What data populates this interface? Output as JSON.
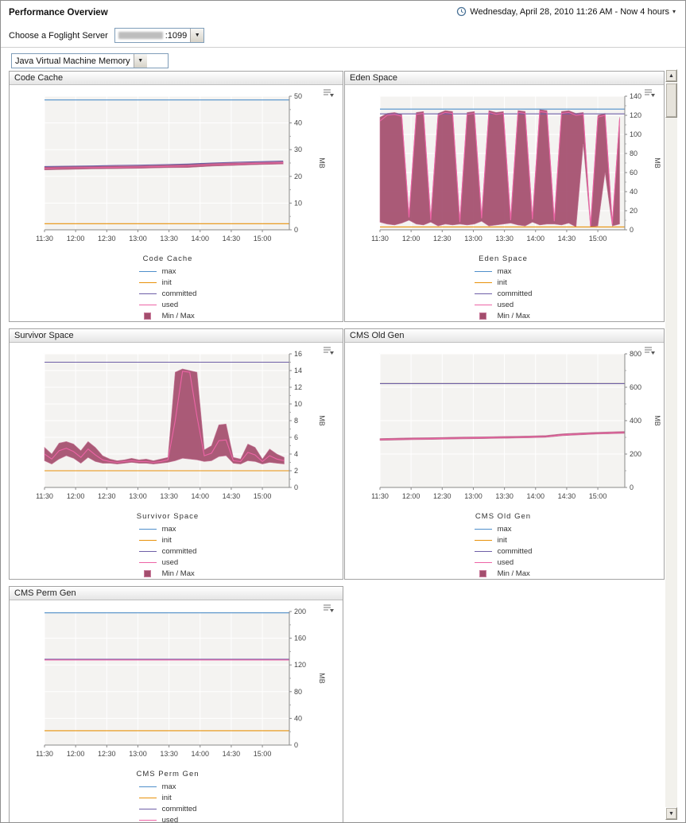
{
  "header": {
    "title": "Performance Overview",
    "time_range": "Wednesday, April 28, 2010 11:26 AM - Now 4 hours"
  },
  "server": {
    "label": "Choose a Foglight Server",
    "port": ":1099"
  },
  "view_selector": {
    "value": "Java Virtual Machine Memory"
  },
  "colors": {
    "max": "#4f8fca",
    "init": "#e8920a",
    "committed": "#6f5fa7",
    "used": "#ed64a6",
    "minmax": "#a34d6d",
    "minmax_edge": "#c97a9b",
    "plot_bg": "#f4f3f1",
    "grid": "#ffffff",
    "axis": "#888888"
  },
  "legend_items": [
    {
      "key": "max",
      "label": "max",
      "type": "line",
      "color": "max"
    },
    {
      "key": "init",
      "label": "init",
      "type": "line",
      "color": "init"
    },
    {
      "key": "committed",
      "label": "committed",
      "type": "line",
      "color": "committed"
    },
    {
      "key": "used",
      "label": "used",
      "type": "line",
      "color": "used"
    },
    {
      "key": "minmax",
      "label": "Min / Max",
      "type": "box",
      "color": "minmax"
    }
  ],
  "charts": [
    {
      "title": "Code Cache",
      "type": "line",
      "ylabel": "MB",
      "ylim": [
        0,
        50
      ],
      "ystep": 10,
      "xmax": 236,
      "x_tick_minutes": [
        0,
        30,
        60,
        90,
        120,
        150,
        180,
        210
      ],
      "x_ticks": [
        "11:30",
        "12:00",
        "12:30",
        "13:00",
        "13:30",
        "14:00",
        "14:30",
        "15:00"
      ],
      "band": {
        "x": [
          0,
          23,
          46,
          69,
          92,
          115,
          138,
          161,
          184,
          207,
          230
        ],
        "max": [
          23.6,
          23.8,
          23.8,
          23.9,
          24.0,
          24.2,
          24.5,
          24.9,
          25.1,
          25.3,
          25.5
        ],
        "min": [
          22.4,
          22.6,
          22.8,
          22.9,
          23.0,
          23.2,
          23.3,
          23.8,
          24.1,
          24.4,
          24.6
        ]
      },
      "series": [
        {
          "name": "max",
          "y": 48.6
        },
        {
          "name": "init",
          "y": 2.3
        },
        {
          "name": "committed",
          "x": [
            0,
            23,
            46,
            69,
            92,
            115,
            138,
            161,
            184,
            207,
            230
          ],
          "y": [
            23.7,
            23.8,
            23.9,
            24.1,
            24.2,
            24.4,
            24.6,
            25.0,
            25.3,
            25.5,
            25.7
          ]
        },
        {
          "name": "used",
          "x": [
            0,
            23,
            46,
            69,
            92,
            115,
            138,
            161,
            184,
            207,
            230
          ],
          "y": [
            23.0,
            23.2,
            23.3,
            23.4,
            23.5,
            23.7,
            23.9,
            24.4,
            24.6,
            24.9,
            25.1
          ]
        }
      ]
    },
    {
      "title": "Eden Space",
      "type": "line",
      "ylabel": "MB",
      "ylim": [
        0,
        140
      ],
      "ystep": 20,
      "xmax": 236,
      "x_tick_minutes": [
        0,
        30,
        60,
        90,
        120,
        150,
        180,
        210
      ],
      "x_ticks": [
        "11:30",
        "12:00",
        "12:30",
        "13:00",
        "13:30",
        "14:00",
        "14:30",
        "15:00"
      ],
      "band": {
        "x": [
          0,
          7,
          14,
          21,
          28,
          35,
          42,
          49,
          56,
          63,
          70,
          77,
          84,
          91,
          98,
          105,
          112,
          119,
          126,
          133,
          140,
          147,
          154,
          161,
          168,
          175,
          182,
          189,
          196,
          203,
          210,
          217,
          224,
          231
        ],
        "max": [
          118,
          122,
          123,
          121,
          15,
          123,
          124,
          12,
          122,
          125,
          124,
          10,
          123,
          124,
          14,
          125,
          123,
          124,
          12,
          125,
          124,
          13,
          126,
          125,
          11,
          124,
          125,
          122,
          123,
          5,
          120,
          122,
          8,
          118
        ],
        "min": [
          8,
          6,
          5,
          7,
          10,
          6,
          5,
          8,
          4,
          6,
          5,
          6,
          5,
          6,
          9,
          4,
          5,
          6,
          7,
          5,
          4,
          8,
          5,
          6,
          6,
          5,
          7,
          3,
          90,
          3,
          4,
          60,
          4,
          6
        ]
      },
      "series": [
        {
          "name": "max",
          "y": 126.5
        },
        {
          "name": "init",
          "y": 3
        },
        {
          "name": "committed",
          "y": 121.5
        },
        {
          "name": "used",
          "x": [
            0,
            7,
            14,
            21,
            28,
            35,
            42,
            49,
            56,
            63,
            70,
            77,
            84,
            91,
            98,
            105,
            112,
            119,
            126,
            133,
            140,
            147,
            154,
            161,
            168,
            175,
            182,
            189,
            196,
            203,
            210,
            217,
            224,
            231
          ],
          "y": [
            114,
            120,
            121,
            119,
            13,
            121,
            122,
            10,
            120,
            123,
            122,
            8,
            121,
            122,
            12,
            123,
            121,
            122,
            10,
            123,
            122,
            11,
            124,
            123,
            9,
            122,
            123,
            120,
            121,
            4,
            118,
            120,
            6,
            116
          ]
        }
      ]
    },
    {
      "title": "Survivor Space",
      "type": "line",
      "ylabel": "MB",
      "ylim": [
        0,
        16
      ],
      "ystep": 2,
      "xmax": 236,
      "x_tick_minutes": [
        0,
        30,
        60,
        90,
        120,
        150,
        180,
        210
      ],
      "x_ticks": [
        "11:30",
        "12:00",
        "12:30",
        "13:00",
        "13:30",
        "14:00",
        "14:30",
        "15:00"
      ],
      "band": {
        "x": [
          0,
          7,
          14,
          21,
          28,
          35,
          42,
          49,
          56,
          63,
          70,
          77,
          84,
          91,
          98,
          105,
          112,
          119,
          126,
          133,
          140,
          147,
          154,
          161,
          168,
          175,
          182,
          189,
          196,
          203,
          210,
          217,
          224,
          231
        ],
        "max": [
          4.8,
          4.0,
          5.3,
          5.5,
          5.2,
          4.4,
          5.5,
          4.8,
          3.8,
          3.4,
          3.2,
          3.3,
          3.5,
          3.3,
          3.4,
          3.2,
          3.4,
          3.6,
          13.8,
          14.2,
          14.0,
          13.8,
          4.5,
          5.0,
          7.5,
          7.6,
          3.6,
          3.4,
          5.2,
          4.8,
          3.4,
          4.6,
          4.0,
          3.6
        ],
        "min": [
          3.2,
          2.8,
          3.4,
          3.8,
          3.5,
          2.9,
          3.6,
          3.1,
          2.9,
          2.9,
          2.8,
          2.9,
          3.0,
          2.9,
          2.9,
          2.8,
          2.9,
          3.0,
          3.2,
          3.5,
          3.4,
          3.3,
          3.1,
          3.2,
          3.7,
          3.8,
          2.9,
          2.8,
          3.2,
          3.1,
          2.8,
          3.0,
          2.9,
          2.8
        ]
      },
      "series": [
        {
          "name": "max",
          "y": 15.0
        },
        {
          "name": "init",
          "y": 2.0
        },
        {
          "name": "committed",
          "y": 15.0
        },
        {
          "name": "used",
          "x": [
            0,
            7,
            14,
            21,
            28,
            35,
            42,
            49,
            56,
            63,
            70,
            77,
            84,
            91,
            98,
            105,
            112,
            119,
            126,
            133,
            140,
            147,
            154,
            161,
            168,
            175,
            182,
            189,
            196,
            203,
            210,
            217,
            224,
            231
          ],
          "y": [
            4.0,
            3.4,
            4.4,
            4.7,
            4.3,
            3.6,
            4.6,
            3.9,
            3.3,
            3.1,
            3.0,
            3.1,
            3.2,
            3.1,
            3.1,
            3.0,
            3.1,
            3.3,
            8.0,
            13.9,
            13.8,
            8.5,
            3.8,
            4.1,
            5.6,
            5.7,
            3.2,
            3.1,
            4.2,
            3.9,
            3.1,
            3.8,
            3.4,
            3.2
          ]
        }
      ]
    },
    {
      "title": "CMS Old Gen",
      "type": "line",
      "ylabel": "MB",
      "ylim": [
        0,
        800
      ],
      "ystep": 200,
      "xmax": 236,
      "x_tick_minutes": [
        0,
        30,
        60,
        90,
        120,
        150,
        180,
        210
      ],
      "x_ticks": [
        "11:30",
        "12:00",
        "12:30",
        "13:00",
        "13:30",
        "14:00",
        "14:30",
        "15:00"
      ],
      "band": {
        "x": [
          0,
          16,
          32,
          48,
          64,
          80,
          96,
          112,
          128,
          144,
          160,
          176,
          192,
          208,
          224,
          236
        ],
        "max": [
          293,
          295,
          297,
          298,
          300,
          302,
          303,
          305,
          306,
          308,
          311,
          321,
          326,
          330,
          333,
          335
        ],
        "min": [
          282,
          284,
          286,
          287,
          289,
          291,
          292,
          294,
          295,
          297,
          300,
          310,
          315,
          319,
          322,
          324
        ]
      },
      "series": [
        {
          "name": "max",
          "y": 622
        },
        {
          "name": "init",
          "y": 622
        },
        {
          "name": "committed",
          "y": 622
        },
        {
          "name": "used",
          "x": [
            0,
            16,
            32,
            48,
            64,
            80,
            96,
            112,
            128,
            144,
            160,
            176,
            192,
            208,
            224,
            236
          ],
          "y": [
            287,
            289,
            291,
            292,
            294,
            296,
            297,
            299,
            300,
            302,
            305,
            315,
            320,
            324,
            327,
            329
          ]
        }
      ]
    },
    {
      "title": "CMS Perm Gen",
      "type": "line",
      "ylabel": "MB",
      "ylim": [
        0,
        200
      ],
      "ystep": 40,
      "xmax": 236,
      "x_tick_minutes": [
        0,
        30,
        60,
        90,
        120,
        150,
        180,
        210
      ],
      "x_ticks": [
        "11:30",
        "12:00",
        "12:30",
        "13:00",
        "13:30",
        "14:00",
        "14:30",
        "15:00"
      ],
      "band": null,
      "series": [
        {
          "name": "max",
          "y": 198
        },
        {
          "name": "init",
          "y": 21.5
        },
        {
          "name": "committed",
          "y": 128.5
        },
        {
          "name": "used",
          "y": 127.5
        }
      ]
    }
  ]
}
